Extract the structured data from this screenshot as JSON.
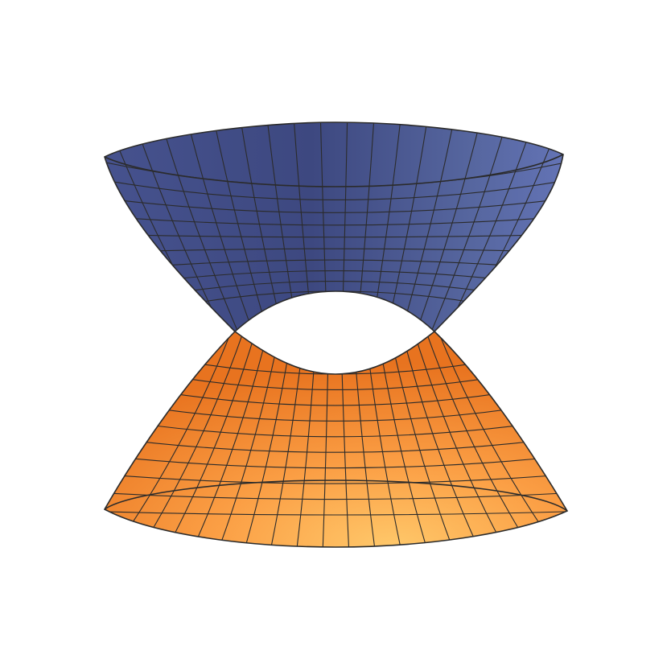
{
  "figure": {
    "description_free": true,
    "surfaces": [
      {
        "id": "upper",
        "name": "upper-surface",
        "colors": {
          "light": "#5b6cb0",
          "mid": "#46528e",
          "dark": "#353f70"
        }
      },
      {
        "id": "lower",
        "name": "lower-surface",
        "colors": {
          "light": "#ffc86a",
          "mid": "#f5943a",
          "dark": "#e3701f"
        }
      }
    ],
    "mesh_color": "#2b2b2b",
    "background": "#ffffff"
  }
}
